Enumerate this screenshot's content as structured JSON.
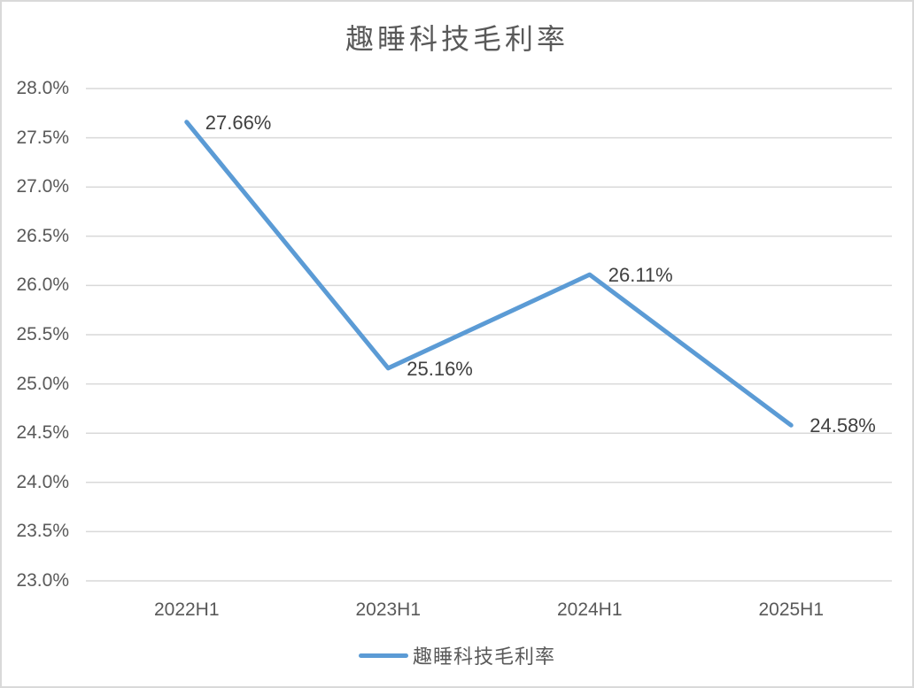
{
  "window": {
    "background": "#ffffff",
    "frame_border_color": "#d9d9d9"
  },
  "chart_data": {
    "type": "line",
    "title": "趣睡科技毛利率",
    "categories": [
      "2022H1",
      "2023H1",
      "2024H1",
      "2025H1"
    ],
    "series": [
      {
        "name": "趣睡科技毛利率",
        "values": [
          27.66,
          25.16,
          26.11,
          24.58
        ],
        "data_labels": [
          "27.66%",
          "25.16%",
          "26.11%",
          "24.58%"
        ],
        "color": "#5B9BD5"
      }
    ],
    "xlabel": "",
    "ylabel": "",
    "ylim": [
      23.0,
      28.0
    ],
    "y_tick_step": 0.5,
    "y_tick_labels": [
      "28.0%",
      "27.5%",
      "27.0%",
      "26.5%",
      "26.0%",
      "25.5%",
      "25.0%",
      "24.5%",
      "24.0%",
      "23.5%",
      "23.0%"
    ],
    "grid": true,
    "gridline_color": "#d9d9d9",
    "axis_label_color": "#595959",
    "data_label_color": "#404040",
    "title_color": "#595959",
    "legend": {
      "position": "bottom",
      "entries": [
        {
          "label": "趣睡科技毛利率",
          "color": "#5B9BD5"
        }
      ]
    }
  }
}
